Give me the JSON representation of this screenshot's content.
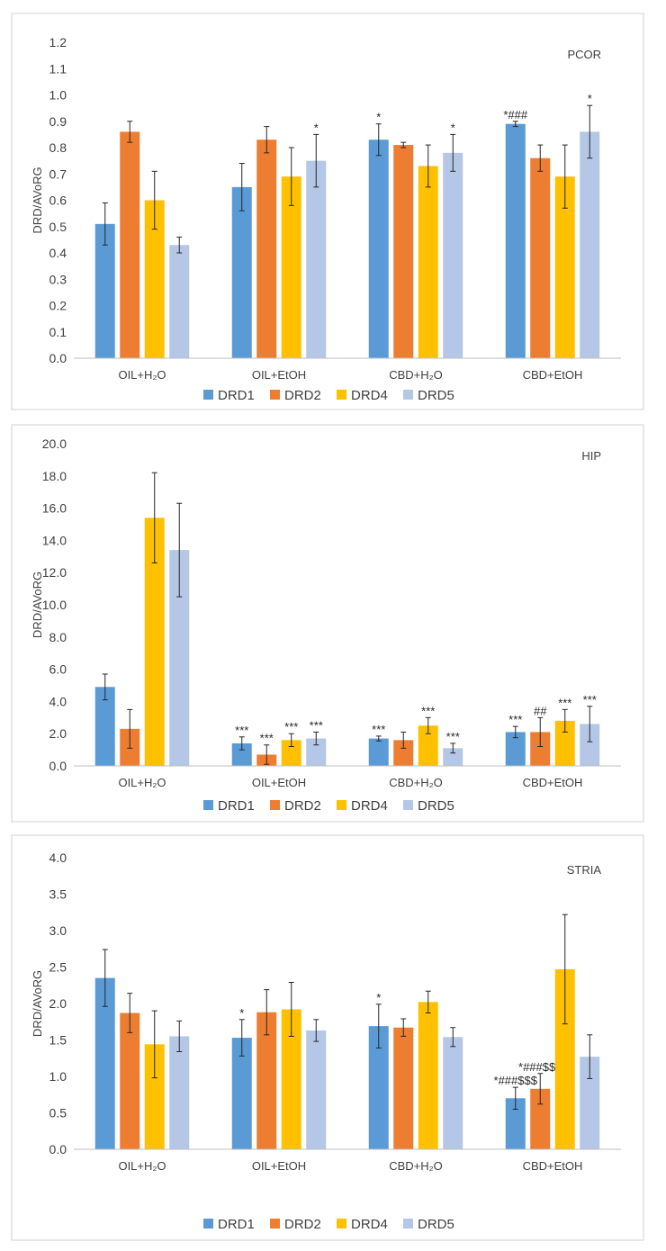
{
  "legend": [
    {
      "name": "DRD1",
      "color": "#5b9bd5"
    },
    {
      "name": "DRD2",
      "color": "#ed7d31"
    },
    {
      "name": "DRD4",
      "color": "#ffc000"
    },
    {
      "name": "DRD5",
      "color": "#b4c7e7"
    }
  ],
  "chart_data": [
    {
      "type": "bar",
      "title": "PCOR",
      "ylabel": "DRD/AVoRG",
      "ylim": [
        0,
        1.2
      ],
      "ytick_step": 0.1,
      "ytick_decimals": 1,
      "legend_position": "bottom",
      "grid": false,
      "categories": [
        "OIL+H₂O",
        "OIL+EtOH",
        "CBD+H₂O",
        "CBD+EtOH"
      ],
      "series": [
        {
          "name": "DRD1",
          "color": "#5b9bd5",
          "values": [
            0.51,
            0.65,
            0.83,
            0.89
          ],
          "errors": [
            0.08,
            0.09,
            0.06,
            0.01
          ],
          "annotations": [
            "",
            "",
            "*",
            "*###"
          ]
        },
        {
          "name": "DRD2",
          "color": "#ed7d31",
          "values": [
            0.86,
            0.83,
            0.81,
            0.76
          ],
          "errors": [
            0.04,
            0.05,
            0.01,
            0.05
          ],
          "annotations": [
            "",
            "",
            "",
            ""
          ]
        },
        {
          "name": "DRD4",
          "color": "#ffc000",
          "values": [
            0.6,
            0.69,
            0.73,
            0.69
          ],
          "errors": [
            0.11,
            0.11,
            0.08,
            0.12
          ],
          "annotations": [
            "",
            "",
            "",
            ""
          ]
        },
        {
          "name": "DRD5",
          "color": "#b4c7e7",
          "values": [
            0.43,
            0.75,
            0.78,
            0.86
          ],
          "errors": [
            0.03,
            0.1,
            0.07,
            0.1
          ],
          "annotations": [
            "",
            "*",
            "*",
            "*"
          ]
        }
      ]
    },
    {
      "type": "bar",
      "title": "HIP",
      "ylabel": "DRD/AVoRG",
      "ylim": [
        0,
        20
      ],
      "ytick_step": 2,
      "ytick_decimals": 1,
      "legend_position": "bottom",
      "grid": false,
      "categories": [
        "OIL+H₂O",
        "OIL+EtOH",
        "CBD+H₂O",
        "CBD+EtOH"
      ],
      "series": [
        {
          "name": "DRD1",
          "color": "#5b9bd5",
          "values": [
            4.9,
            1.4,
            1.7,
            2.1
          ],
          "errors": [
            0.8,
            0.4,
            0.15,
            0.35
          ],
          "annotations": [
            "",
            "***",
            "***",
            "***"
          ]
        },
        {
          "name": "DRD2",
          "color": "#ed7d31",
          "values": [
            2.3,
            0.7,
            1.6,
            2.1
          ],
          "errors": [
            1.2,
            0.6,
            0.5,
            0.9
          ],
          "annotations": [
            "",
            "***",
            "",
            "##"
          ]
        },
        {
          "name": "DRD4",
          "color": "#ffc000",
          "values": [
            15.4,
            1.6,
            2.5,
            2.8
          ],
          "errors": [
            2.8,
            0.4,
            0.5,
            0.7
          ],
          "annotations": [
            "",
            "***",
            "***",
            "***"
          ]
        },
        {
          "name": "DRD5",
          "color": "#b4c7e7",
          "values": [
            13.4,
            1.7,
            1.1,
            2.6
          ],
          "errors": [
            2.9,
            0.4,
            0.3,
            1.1
          ],
          "annotations": [
            "",
            "***",
            "***",
            "***"
          ]
        }
      ]
    },
    {
      "type": "bar",
      "title": "STRIA",
      "ylabel": "DRD/AVoRG",
      "ylim": [
        0,
        4.0
      ],
      "ytick_step": 0.5,
      "ytick_decimals": 1,
      "legend_position": "bottom",
      "grid": false,
      "categories": [
        "OIL+H₂O",
        "OIL+EtOH",
        "CBD+H₂O",
        "CBD+EtOH"
      ],
      "series": [
        {
          "name": "DRD1",
          "color": "#5b9bd5",
          "values": [
            2.35,
            1.53,
            1.69,
            0.7
          ],
          "errors": [
            0.39,
            0.25,
            0.3,
            0.15
          ],
          "annotations": [
            "",
            "*",
            "*",
            "*###$$$"
          ]
        },
        {
          "name": "DRD2",
          "color": "#ed7d31",
          "values": [
            1.87,
            1.88,
            1.67,
            0.83
          ],
          "errors": [
            0.27,
            0.31,
            0.12,
            0.21
          ],
          "annotations": [
            "",
            "",
            "",
            "*###$$$"
          ]
        },
        {
          "name": "DRD4",
          "color": "#ffc000",
          "values": [
            1.44,
            1.92,
            2.02,
            2.47
          ],
          "errors": [
            0.46,
            0.37,
            0.15,
            0.75
          ],
          "annotations": [
            "",
            "",
            "",
            ""
          ]
        },
        {
          "name": "DRD5",
          "color": "#b4c7e7",
          "values": [
            1.55,
            1.63,
            1.54,
            1.27
          ],
          "errors": [
            0.21,
            0.15,
            0.13,
            0.3
          ],
          "annotations": [
            "",
            "",
            "",
            ""
          ]
        }
      ]
    }
  ]
}
